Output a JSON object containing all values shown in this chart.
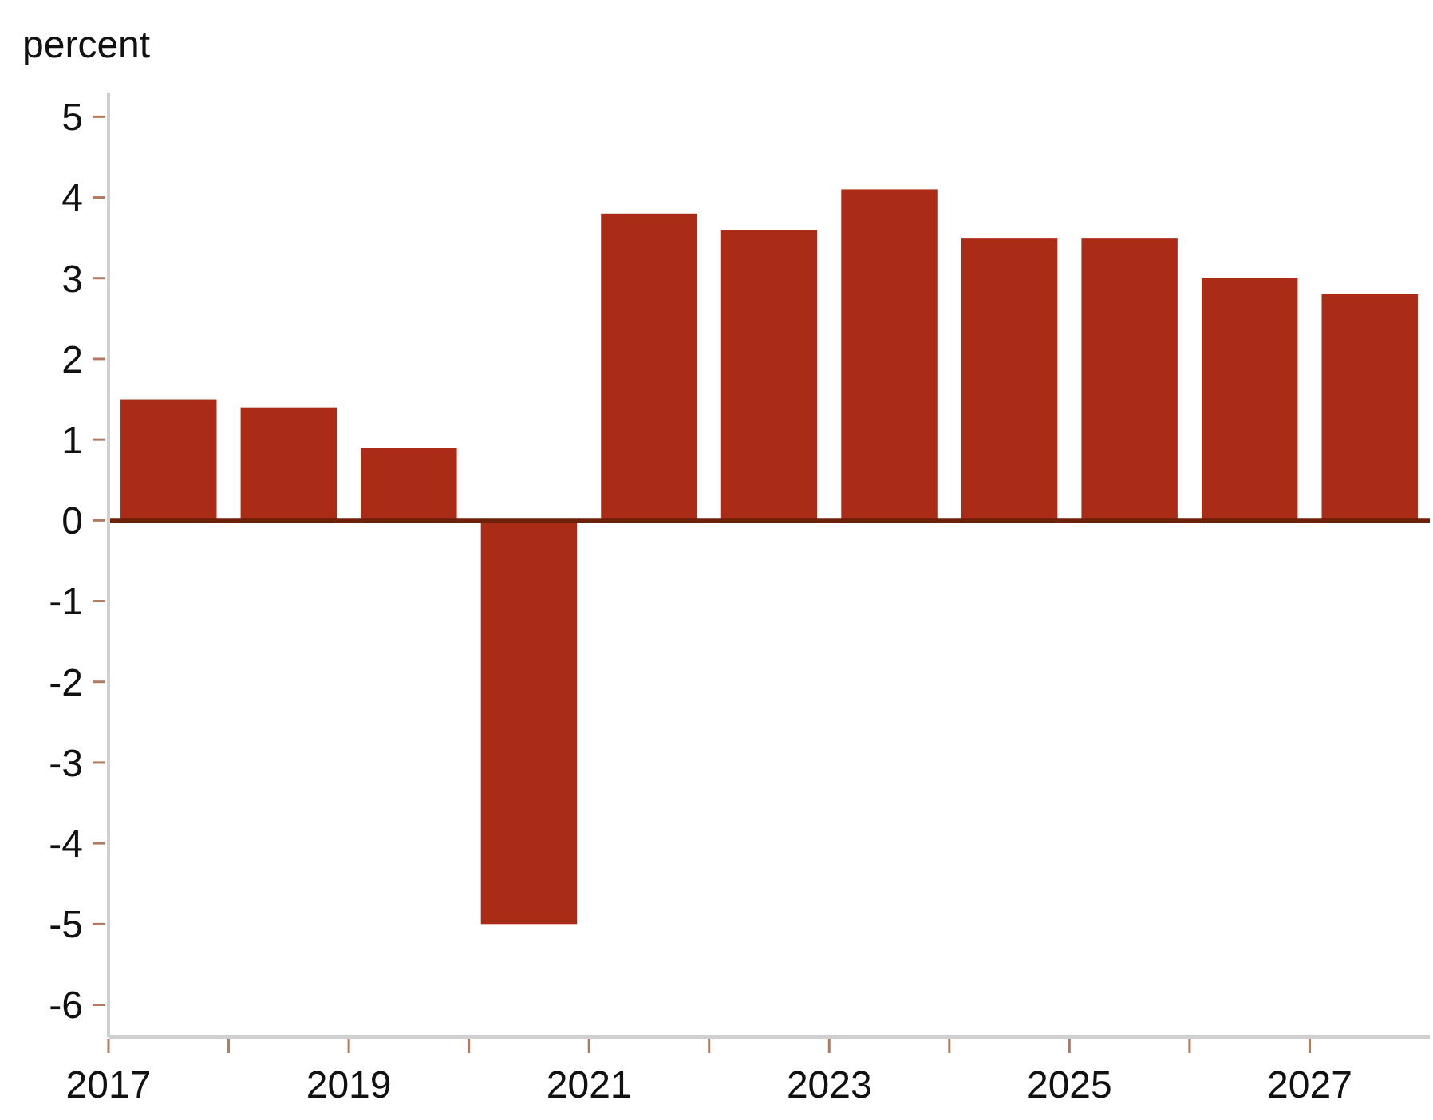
{
  "chart_data": {
    "type": "bar",
    "ylabel": "percent",
    "x": [
      2017.5,
      2018.5,
      2019.5,
      2020.5,
      2021.5,
      2022.5,
      2023.5,
      2024.5,
      2025.5,
      2026.5,
      2027.5
    ],
    "values": [
      1.5,
      1.4,
      0.9,
      -5.0,
      3.8,
      3.6,
      4.1,
      3.5,
      3.5,
      3.0,
      2.8
    ],
    "color": "#ab2c16",
    "xlim": [
      2017,
      2028
    ],
    "xticks": [
      2017,
      {
        "value": 2018,
        "label": null
      },
      2019,
      {
        "value": 2020,
        "label": null
      },
      2021,
      {
        "value": 2022,
        "label": null
      },
      2023,
      {
        "value": 2024,
        "label": null
      },
      2025,
      {
        "value": 2026,
        "label": null
      },
      2027
    ],
    "ylim": [
      -6.4,
      5.3
    ],
    "yticks": [
      5,
      4,
      3,
      2,
      1,
      0,
      -1,
      -2,
      -3,
      -4,
      -5,
      -6
    ],
    "ref_lines": [
      {
        "axis": "y",
        "value": 0,
        "color": "#6b2208"
      }
    ],
    "grid": false
  }
}
